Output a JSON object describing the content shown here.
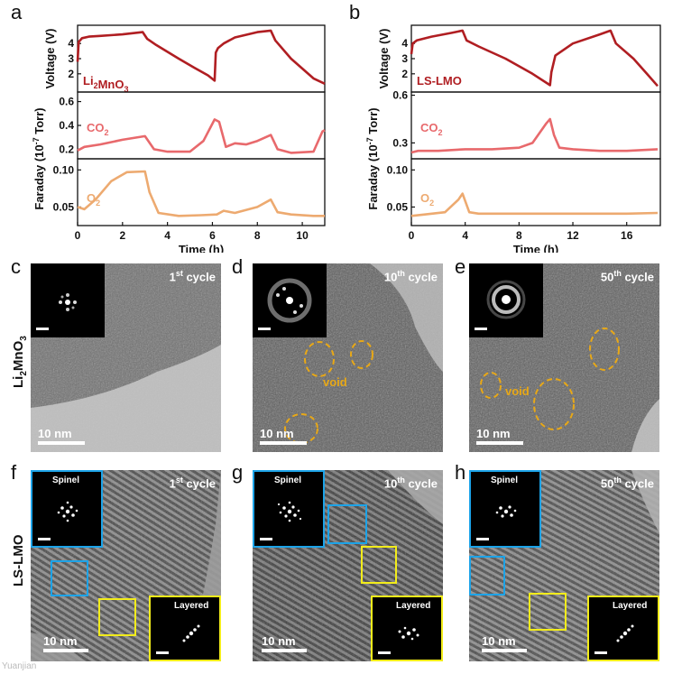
{
  "panel_labels": {
    "a": "a",
    "b": "b",
    "c": "c",
    "d": "d",
    "e": "e",
    "f": "f",
    "g": "g",
    "h": "h"
  },
  "row_labels": {
    "li2mno3": "Li2MnO3",
    "lslmo": "LS-LMO"
  },
  "chart_data": [
    {
      "type": "line",
      "panel": "a",
      "xlabel": "Time (h)",
      "xlim": [
        0,
        11
      ],
      "xticks": [
        "0",
        "2",
        "4",
        "6",
        "8",
        "10"
      ],
      "shared_ylabel": "Faraday (10-7 Torr)",
      "subplots": [
        {
          "name": "voltage",
          "ylabel": "Voltage (V)",
          "legend": "Li2MnO3",
          "color": "#b01e22",
          "ylim": [
            0.8,
            5.2
          ],
          "yticks": [
            "2",
            "3",
            "4"
          ],
          "x": [
            0,
            0.05,
            0.2,
            0.5,
            1.0,
            2.0,
            2.9,
            3.1,
            3.5,
            4.5,
            5.2,
            5.8,
            6.1,
            6.15,
            6.25,
            6.5,
            7.0,
            8.0,
            8.6,
            8.8,
            9.5,
            10.5,
            11
          ],
          "y": [
            2.8,
            4.1,
            4.35,
            4.45,
            4.5,
            4.6,
            4.75,
            4.3,
            3.9,
            3.0,
            2.4,
            1.9,
            1.55,
            3.4,
            3.7,
            4.0,
            4.4,
            4.75,
            4.85,
            4.2,
            3.0,
            1.7,
            1.35
          ]
        },
        {
          "name": "co2",
          "legend": "CO2",
          "color": "#e8696c",
          "ylim": [
            0.12,
            0.68
          ],
          "yticks": [
            "0.2",
            "0.4",
            "0.6"
          ],
          "x": [
            0,
            0.3,
            1,
            2,
            3,
            3.4,
            4,
            5,
            5.6,
            6.1,
            6.3,
            6.6,
            7,
            7.5,
            8,
            8.6,
            8.9,
            9.5,
            10.5,
            10.9,
            11
          ],
          "y": [
            0.19,
            0.22,
            0.24,
            0.28,
            0.31,
            0.2,
            0.18,
            0.18,
            0.27,
            0.45,
            0.43,
            0.22,
            0.25,
            0.24,
            0.27,
            0.32,
            0.2,
            0.17,
            0.18,
            0.35,
            0.36
          ]
        },
        {
          "name": "o2",
          "legend": "O2",
          "color": "#edaa70",
          "ylim": [
            0.025,
            0.115
          ],
          "yticks": [
            "0.05",
            "0.10"
          ],
          "x": [
            0,
            0.3,
            0.8,
            1.5,
            2.2,
            3.0,
            3.2,
            3.6,
            4.5,
            5.5,
            6.2,
            6.5,
            7,
            8,
            8.6,
            8.9,
            9.5,
            10.5,
            11
          ],
          "y": [
            0.05,
            0.047,
            0.06,
            0.085,
            0.097,
            0.098,
            0.07,
            0.042,
            0.038,
            0.039,
            0.04,
            0.045,
            0.042,
            0.05,
            0.06,
            0.043,
            0.04,
            0.038,
            0.038
          ]
        }
      ]
    },
    {
      "type": "line",
      "panel": "b",
      "xlabel": "Time (h)",
      "xlim": [
        0,
        18.5
      ],
      "xticks": [
        "0",
        "4",
        "8",
        "12",
        "16"
      ],
      "shared_ylabel": "Faraday (10-7 Torr)",
      "subplots": [
        {
          "name": "voltage",
          "ylabel": "Voltage (V)",
          "legend": "LS-LMO",
          "color": "#b01e22",
          "ylim": [
            0.8,
            5.2
          ],
          "yticks": [
            "2",
            "3",
            "4"
          ],
          "x": [
            0,
            0.1,
            0.4,
            1.5,
            3,
            3.8,
            4.1,
            5,
            7,
            9,
            10.3,
            10.4,
            10.7,
            12,
            14,
            14.8,
            15.2,
            16.5,
            17.5,
            18.3
          ],
          "y": [
            3.3,
            4.0,
            4.2,
            4.45,
            4.7,
            4.85,
            4.2,
            3.8,
            3.0,
            2.0,
            1.25,
            2.1,
            3.2,
            4.0,
            4.6,
            4.85,
            4.0,
            3.0,
            2.0,
            1.2
          ]
        },
        {
          "name": "co2",
          "legend": "CO2",
          "color": "#e8696c",
          "ylim": [
            0.2,
            0.62
          ],
          "yticks": [
            "0.3",
            "0.6"
          ],
          "x": [
            0,
            0.5,
            2,
            4,
            6,
            8,
            9,
            10,
            10.3,
            10.6,
            11,
            12,
            14,
            16,
            18.3
          ],
          "y": [
            0.24,
            0.25,
            0.25,
            0.26,
            0.26,
            0.27,
            0.3,
            0.42,
            0.45,
            0.35,
            0.27,
            0.26,
            0.25,
            0.25,
            0.26
          ]
        },
        {
          "name": "o2",
          "legend": "O2",
          "color": "#edaa70",
          "ylim": [
            0.025,
            0.115
          ],
          "yticks": [
            "0.05",
            "0.10"
          ],
          "x": [
            0,
            1,
            2.5,
            3.5,
            3.8,
            4.3,
            5,
            8,
            12,
            16,
            18.3
          ],
          "y": [
            0.038,
            0.04,
            0.043,
            0.06,
            0.068,
            0.043,
            0.041,
            0.041,
            0.041,
            0.041,
            0.042
          ]
        }
      ]
    }
  ],
  "tem": {
    "cycle_suffix": "cycle",
    "cycles": [
      {
        "num": "1",
        "sup": "st"
      },
      {
        "num": "10",
        "sup": "th"
      },
      {
        "num": "50",
        "sup": "th"
      }
    ],
    "scale_bar": "10 nm",
    "void_label": "void",
    "inset_spinel": "Spinel",
    "inset_layered": "Layered"
  },
  "watermark": "Yuanjian"
}
